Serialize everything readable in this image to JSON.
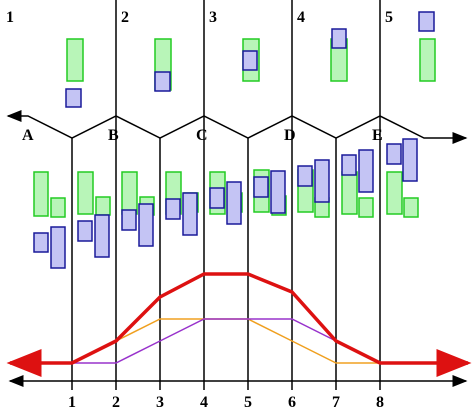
{
  "diagram": {
    "column_labels": [
      "1",
      "2",
      "3",
      "4",
      "5"
    ],
    "stage_labels": [
      "A",
      "B",
      "C",
      "D",
      "E"
    ],
    "axis_labels": [
      "1",
      "2",
      "3",
      "4",
      "5",
      "6",
      "7",
      "8"
    ],
    "colors": {
      "line": "#000000",
      "green_fill": "#b8f5b8",
      "green_stroke": "#22cc22",
      "blue_fill": "#c4c4f4",
      "blue_stroke": "#1a1a9a",
      "red_curve": "#dd1111",
      "orange_curve": "#f0a020",
      "purple_curve": "#9933cc"
    }
  }
}
